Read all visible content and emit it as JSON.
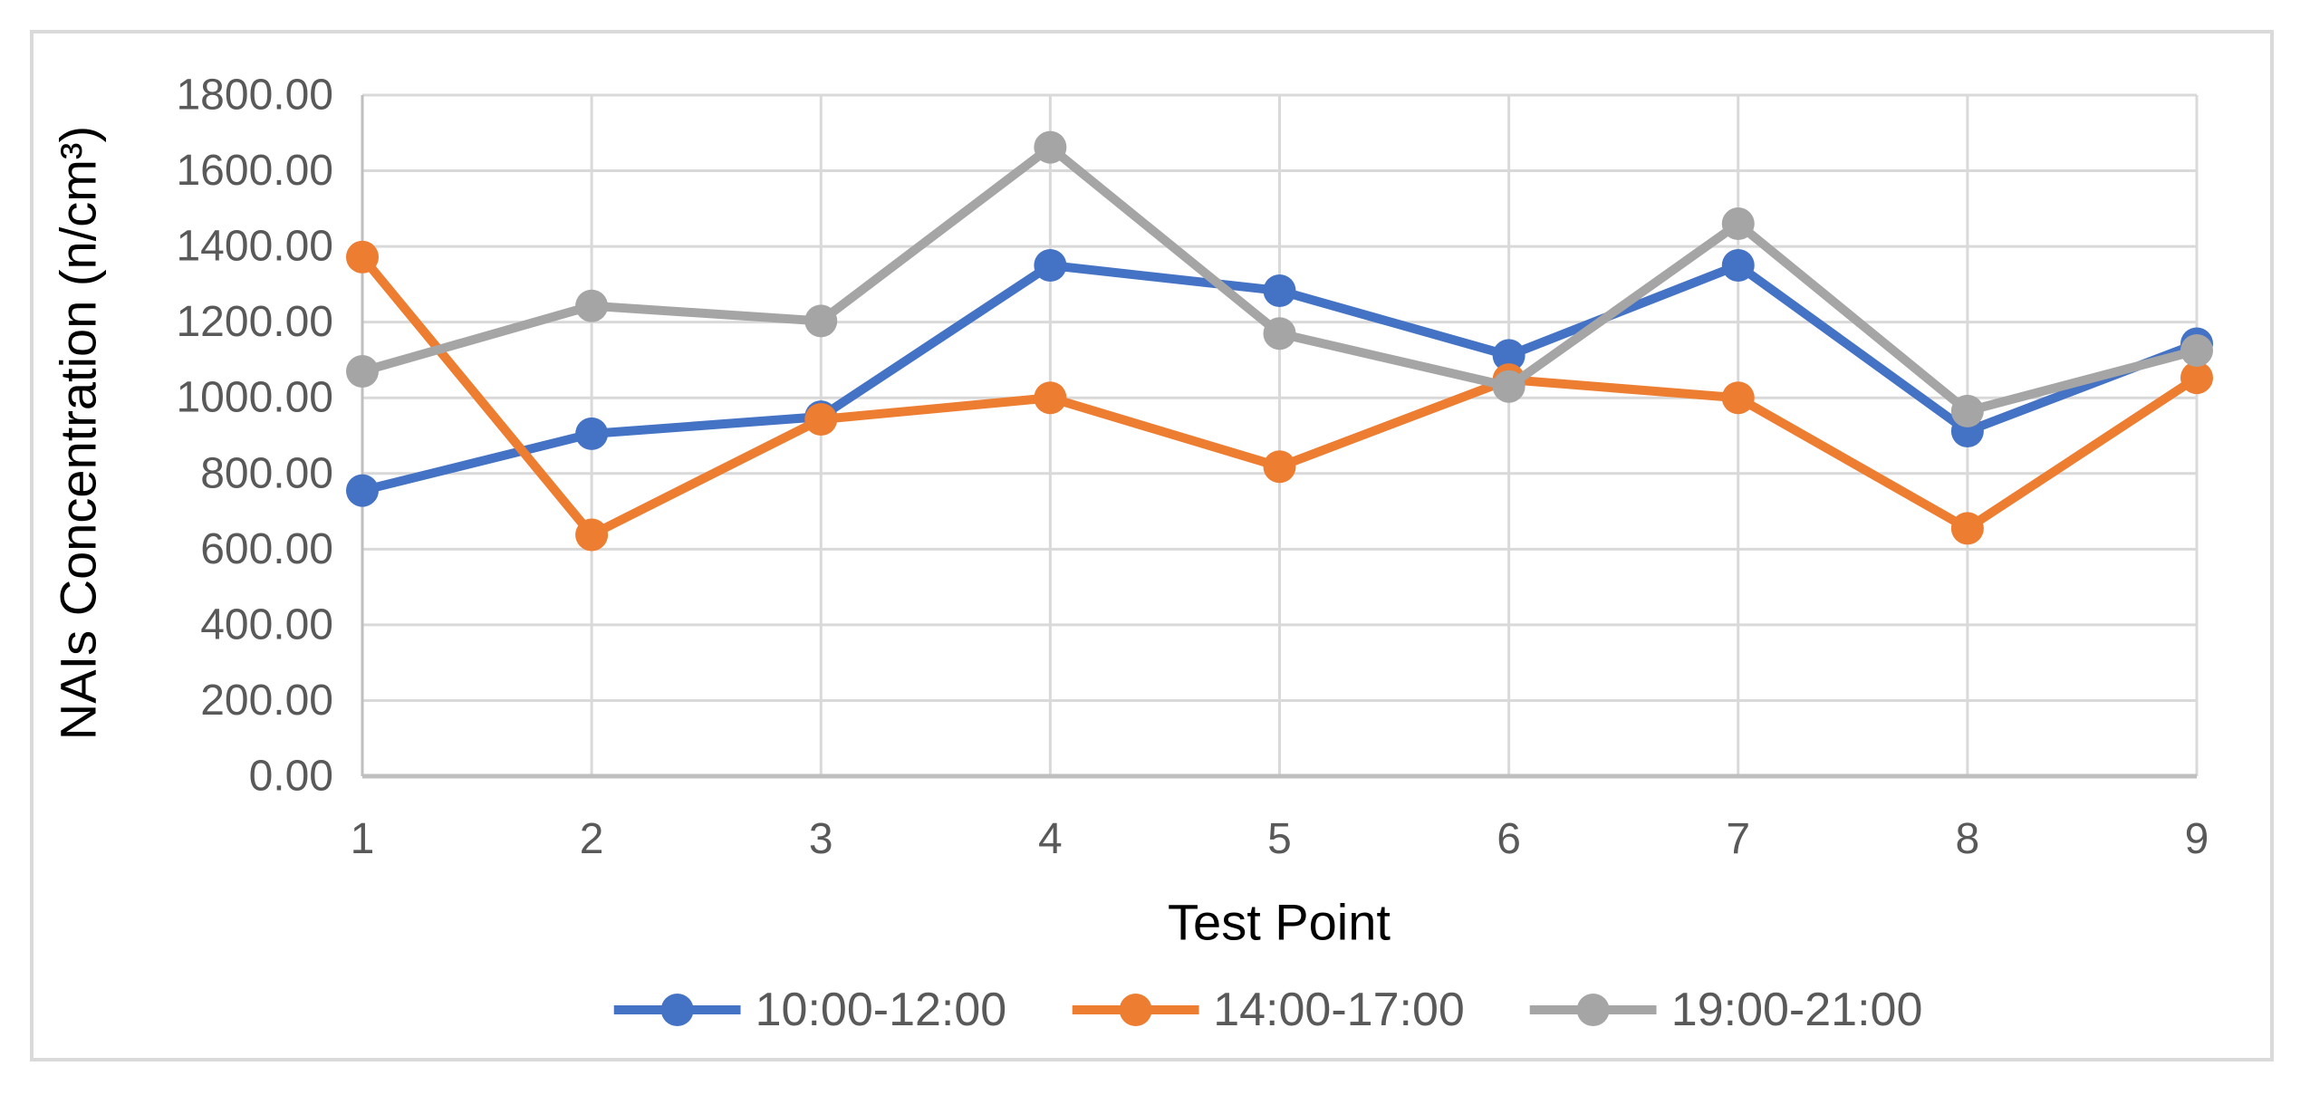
{
  "chart_data": {
    "type": "line",
    "categories": [
      "1",
      "2",
      "3",
      "4",
      "5",
      "6",
      "7",
      "8",
      "9"
    ],
    "series": [
      {
        "name": "10:00-12:00",
        "color": "#4472C4",
        "values": [
          755,
          905,
          950,
          1350,
          1283,
          1112,
          1350,
          912,
          1143
        ]
      },
      {
        "name": "14:00-17:00",
        "color": "#ED7D31",
        "values": [
          1372,
          638,
          943,
          1000,
          818,
          1048,
          1000,
          655,
          1053
        ]
      },
      {
        "name": "19:00-21:00",
        "color": "#A5A5A5",
        "values": [
          1070,
          1243,
          1203,
          1662,
          1170,
          1030,
          1460,
          965,
          1125
        ]
      }
    ],
    "xlabel": "Test Point",
    "ylabel": "NAIs Concentration (n/cm³)",
    "ylim": [
      0,
      1800
    ],
    "ytick_step": 200,
    "ytick_decimals": 2,
    "grid": true,
    "legend_position": "bottom"
  },
  "styles": {
    "background": "#FFFFFF",
    "frame_border_color": "#DADADA",
    "grid_color": "#D9D9D9",
    "axis_line_color": "#BFBFBF",
    "tick_label_color": "#595959",
    "axis_title_color": "#000000",
    "legend_text_color": "#595959"
  }
}
